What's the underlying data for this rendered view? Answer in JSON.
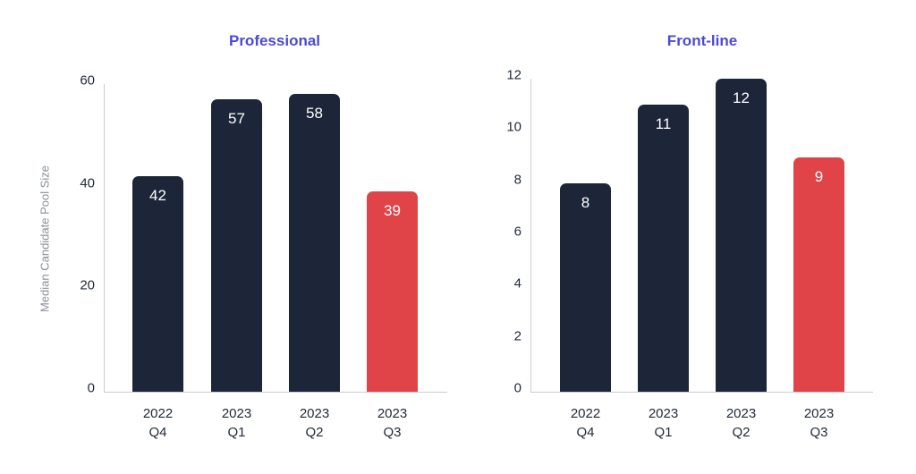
{
  "colors": {
    "title": "#4a4ad6",
    "bar_default": "#1c2638",
    "bar_highlight": "#e04448",
    "axis": "#c8ccd4",
    "text": "#1f2937",
    "ylabel": "#8a9099"
  },
  "ylabel": "Median Candidate Pool Size",
  "chart_data": [
    {
      "type": "bar",
      "title": "Professional",
      "xlabel": "",
      "ylabel": "Median Candidate Pool Size",
      "categories": [
        "2022 Q4",
        "2023 Q1",
        "2023 Q2",
        "2023 Q3"
      ],
      "category_lines": [
        [
          "2022",
          "Q4"
        ],
        [
          "2023",
          "Q1"
        ],
        [
          "2023",
          "Q2"
        ],
        [
          "2023",
          "Q3"
        ]
      ],
      "values": [
        42,
        57,
        58,
        39
      ],
      "highlight_index": 3,
      "ylim": [
        0,
        60
      ],
      "yticks": [
        0,
        20,
        40,
        60
      ],
      "grid": false,
      "legend": null
    },
    {
      "type": "bar",
      "title": "Front-line",
      "xlabel": "",
      "ylabel": "",
      "categories": [
        "2022 Q4",
        "2023 Q1",
        "2023 Q2",
        "2023 Q3"
      ],
      "category_lines": [
        [
          "2022",
          "Q4"
        ],
        [
          "2023",
          "Q1"
        ],
        [
          "2023",
          "Q2"
        ],
        [
          "2023",
          "Q3"
        ]
      ],
      "values": [
        8,
        11,
        12,
        9
      ],
      "highlight_index": 3,
      "ylim": [
        0,
        12
      ],
      "yticks": [
        0,
        2,
        4,
        6,
        8,
        10,
        12
      ],
      "grid": false,
      "legend": null
    }
  ]
}
